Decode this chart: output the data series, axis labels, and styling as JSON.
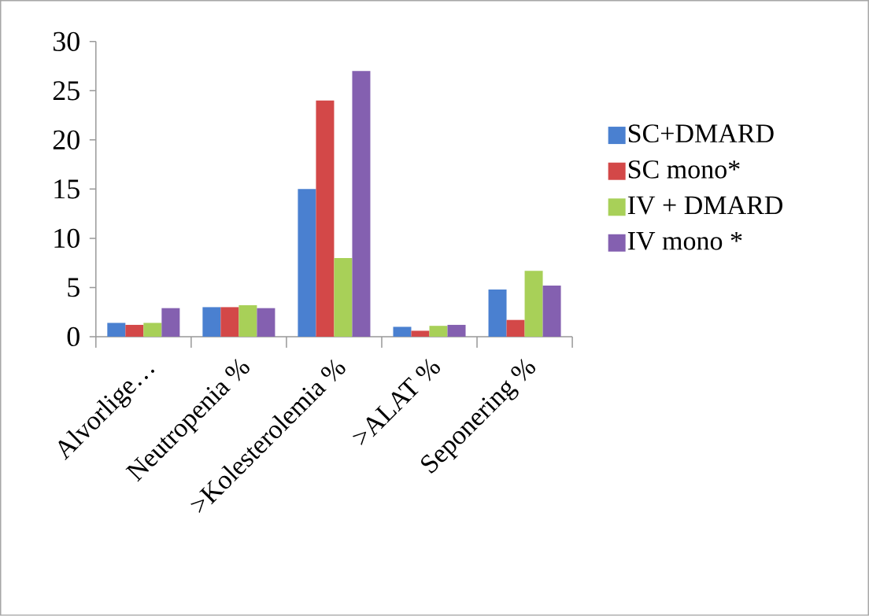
{
  "chart_data": {
    "type": "bar",
    "categories": [
      "Alvorlige…",
      "Neutropenia %",
      ">Kolesterolemia %",
      ">ALAT %",
      "Seponering %"
    ],
    "series": [
      {
        "name": "SC+DMARD",
        "color": "#4a80d0",
        "values": [
          1.4,
          3.0,
          15,
          1.0,
          4.8
        ]
      },
      {
        "name": "SC mono*",
        "color": "#d34848",
        "values": [
          1.2,
          3.0,
          24,
          0.6,
          1.7
        ]
      },
      {
        "name": "IV + DMARD",
        "color": "#a8d058",
        "values": [
          1.4,
          3.2,
          8,
          1.1,
          6.7
        ]
      },
      {
        "name": "IV mono *",
        "color": "#8460b0",
        "values": [
          2.9,
          2.9,
          27,
          1.2,
          5.2
        ]
      }
    ],
    "ylim": [
      0,
      30
    ],
    "yticks": [
      0,
      5,
      10,
      15,
      20,
      25,
      30
    ],
    "legend": "right"
  }
}
